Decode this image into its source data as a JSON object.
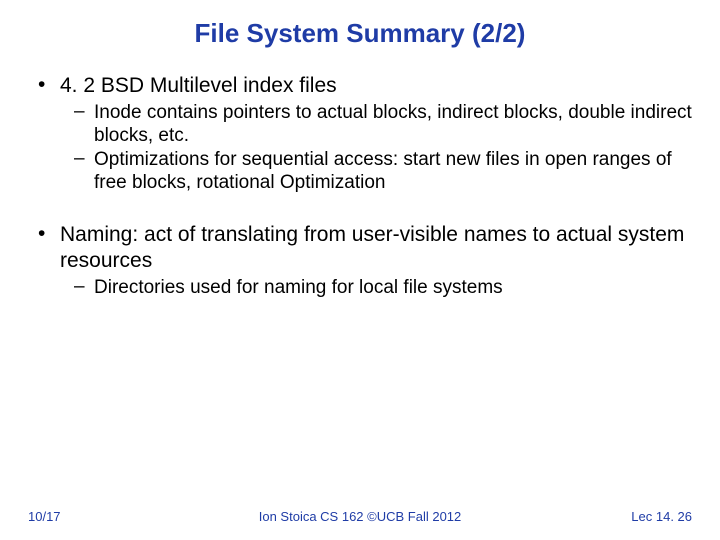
{
  "title": {
    "text": "File System Summary (2/2)",
    "color": "#1f3ca6",
    "fontsize": 26
  },
  "body": {
    "color": "#000000",
    "l1_fontsize": 21,
    "l2_fontsize": 19,
    "bullets": [
      {
        "text": "4. 2 BSD Multilevel index files",
        "sub": [
          "Inode contains pointers to actual blocks, indirect blocks, double indirect blocks, etc.",
          "Optimizations for sequential access: start new files in open ranges of free blocks, rotational Optimization"
        ]
      },
      {
        "text": "Naming: act of translating from user-visible names to actual system resources",
        "sub": [
          "Directories used for naming for local file systems"
        ]
      }
    ]
  },
  "footer": {
    "color": "#1f3ca6",
    "fontsize": 13,
    "left": "10/17",
    "center": "Ion Stoica CS 162 ©UCB Fall 2012",
    "right": "Lec 14. 26"
  },
  "background_color": "#ffffff"
}
